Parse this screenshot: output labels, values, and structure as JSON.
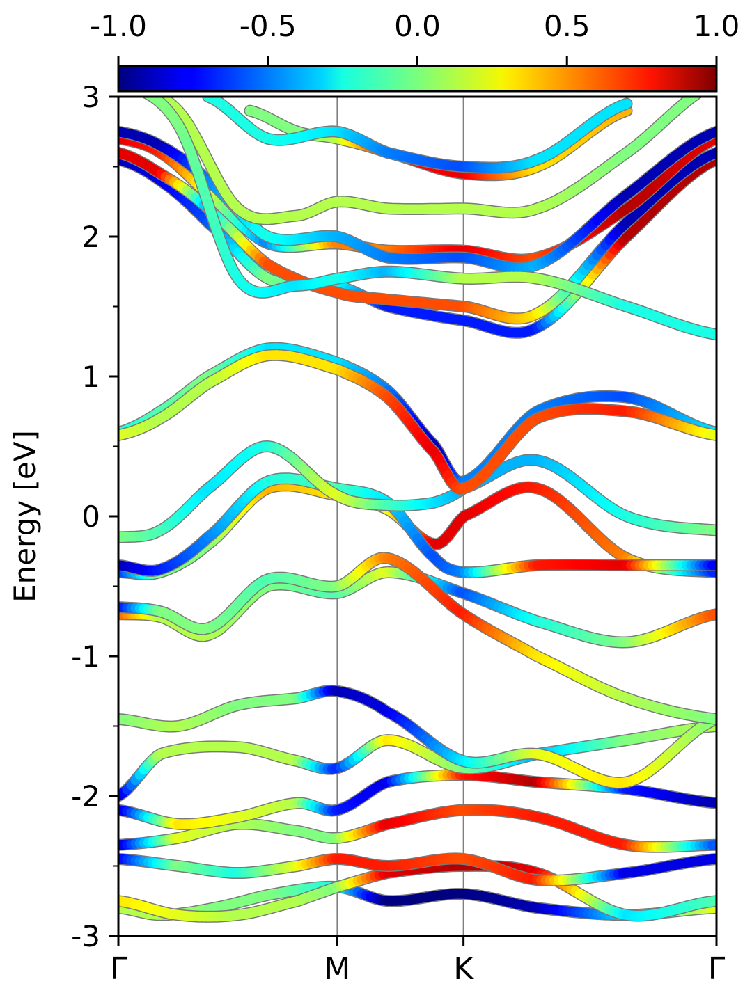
{
  "chart_data": {
    "type": "line",
    "title": "",
    "ylabel": "Energy [eV]",
    "xlabel": "",
    "ylim": [
      -3,
      3
    ],
    "yticks": [
      "-3",
      "-2",
      "-1",
      "0",
      "1",
      "2",
      "3"
    ],
    "ytick_values": [
      -3,
      -2,
      -1,
      0,
      1,
      2,
      3
    ],
    "kpath": [
      {
        "label": "Γ",
        "x": 0.0
      },
      {
        "label": "M",
        "x": 0.366
      },
      {
        "label": "K",
        "x": 0.577
      },
      {
        "label": "Γ",
        "x": 1.0
      }
    ],
    "colorbar": {
      "colormap": "jet",
      "range": [
        -1.0,
        1.0
      ],
      "ticks": [
        "-1.0",
        "-0.5",
        "0.0",
        "0.5",
        "1.0"
      ],
      "tick_values": [
        -1.0,
        -0.5,
        0.0,
        0.5,
        1.0
      ]
    },
    "grid": false,
    "series": [
      {
        "x": [
          0,
          0.07,
          0.16,
          0.26,
          0.366,
          0.45,
          0.577,
          0.7,
          0.85,
          1.0
        ],
        "y": [
          -2.8,
          -2.85,
          -2.8,
          -2.7,
          -2.65,
          -2.75,
          -2.7,
          -2.8,
          -2.85,
          -2.8
        ],
        "c": [
          0.1,
          0.1,
          0.0,
          0.0,
          -0.2,
          -1.0,
          -1.0,
          -0.9,
          -0.3,
          0.2
        ]
      },
      {
        "x": [
          0,
          0.1,
          0.2,
          0.3,
          0.366,
          0.45,
          0.577,
          0.7,
          0.85,
          1.0
        ],
        "y": [
          -2.75,
          -2.85,
          -2.85,
          -2.75,
          -2.65,
          -2.55,
          -2.5,
          -2.55,
          -2.85,
          -2.75
        ],
        "c": [
          0.3,
          0.2,
          0.1,
          0.1,
          0.0,
          0.8,
          0.9,
          0.8,
          -0.3,
          -0.1
        ]
      },
      {
        "x": [
          0,
          0.1,
          0.2,
          0.3,
          0.366,
          0.45,
          0.577,
          0.7,
          0.85,
          1.0
        ],
        "y": [
          -2.45,
          -2.5,
          -2.55,
          -2.5,
          -2.45,
          -2.5,
          -2.45,
          -2.6,
          -2.55,
          -2.45
        ],
        "c": [
          -0.8,
          0.0,
          -0.2,
          0.2,
          0.7,
          0.7,
          0.6,
          0.7,
          -0.8,
          -0.8
        ]
      },
      {
        "x": [
          0,
          0.1,
          0.2,
          0.3,
          0.366,
          0.45,
          0.577,
          0.7,
          0.85,
          1.0
        ],
        "y": [
          -2.35,
          -2.3,
          -2.2,
          -2.25,
          -2.3,
          -2.2,
          -2.1,
          -2.15,
          -2.35,
          -2.35
        ],
        "c": [
          -0.9,
          0.2,
          0.1,
          0.0,
          0.0,
          0.8,
          0.6,
          0.7,
          0.7,
          -0.6
        ]
      },
      {
        "x": [
          0,
          0.1,
          0.2,
          0.3,
          0.366,
          0.45,
          0.577,
          0.7,
          0.85,
          1.0
        ],
        "y": [
          -2.1,
          -2.2,
          -2.15,
          -2.05,
          -2.1,
          -1.9,
          -1.85,
          -1.9,
          -1.95,
          -2.05
        ],
        "c": [
          -0.9,
          0.3,
          0.2,
          0.1,
          -0.7,
          -0.8,
          0.7,
          0.9,
          -0.7,
          -0.9
        ]
      },
      {
        "x": [
          0,
          0.07,
          0.2,
          0.3,
          0.366,
          0.45,
          0.577,
          0.7,
          0.85,
          1.0
        ],
        "y": [
          -2.0,
          -1.7,
          -1.65,
          -1.75,
          -1.8,
          -1.6,
          -1.8,
          -1.7,
          -1.6,
          -1.5
        ],
        "c": [
          -0.9,
          0.1,
          0.1,
          0.1,
          -0.7,
          0.3,
          0.0,
          -0.4,
          0.0,
          0.1
        ]
      },
      {
        "x": [
          0,
          0.1,
          0.2,
          0.3,
          0.366,
          0.45,
          0.577,
          0.7,
          0.85,
          1.0
        ],
        "y": [
          -1.45,
          -1.5,
          -1.35,
          -1.3,
          -1.25,
          -1.4,
          -1.75,
          -1.7,
          -1.9,
          -1.45
        ],
        "c": [
          0.0,
          0.1,
          0.0,
          0.0,
          -0.9,
          -0.8,
          -0.3,
          0.2,
          0.3,
          0.0
        ]
      },
      {
        "x": [
          0,
          0.07,
          0.15,
          0.25,
          0.366,
          0.45,
          0.577,
          0.7,
          0.85,
          1.0
        ],
        "y": [
          -0.7,
          -0.72,
          -0.85,
          -0.5,
          -0.55,
          -0.4,
          -0.55,
          -0.75,
          -0.9,
          -0.7
        ],
        "c": [
          0.6,
          0.1,
          0.1,
          0.0,
          -0.1,
          0.2,
          -0.6,
          -0.2,
          0.0,
          0.6
        ]
      },
      {
        "x": [
          0,
          0.07,
          0.15,
          0.25,
          0.366,
          0.45,
          0.577,
          0.7,
          0.85,
          1.0
        ],
        "y": [
          -0.65,
          -0.68,
          -0.8,
          -0.45,
          -0.5,
          -0.3,
          -0.7,
          -1.0,
          -1.3,
          -1.45
        ],
        "c": [
          -0.8,
          0.0,
          0.0,
          -0.1,
          0.0,
          0.5,
          0.7,
          0.3,
          0.1,
          0.0
        ]
      },
      {
        "x": [
          0,
          0.07,
          0.15,
          0.25,
          0.366,
          0.45,
          0.53,
          0.577,
          0.7,
          0.85,
          1.0
        ],
        "y": [
          -0.4,
          -0.4,
          -0.2,
          0.2,
          0.15,
          0.05,
          -0.2,
          0.0,
          0.2,
          -0.3,
          -0.4
        ],
        "c": [
          -0.7,
          0.0,
          0.0,
          0.4,
          0.3,
          0.2,
          0.8,
          0.8,
          0.7,
          0.5,
          -0.7
        ]
      },
      {
        "x": [
          0,
          0.07,
          0.15,
          0.25,
          0.366,
          0.45,
          0.53,
          0.577,
          0.7,
          0.85,
          1.0
        ],
        "y": [
          -0.35,
          -0.38,
          -0.15,
          0.25,
          0.2,
          0.1,
          -0.3,
          -0.4,
          -0.35,
          -0.35,
          -0.35
        ],
        "c": [
          -0.9,
          -0.7,
          -0.5,
          -0.2,
          -0.1,
          -0.3,
          -0.6,
          -0.5,
          0.7,
          0.8,
          -0.8
        ]
      },
      {
        "x": [
          0,
          0.07,
          0.15,
          0.25,
          0.366,
          0.45,
          0.53,
          0.577,
          0.7,
          0.85,
          1.0
        ],
        "y": [
          -0.15,
          -0.1,
          0.2,
          0.5,
          0.15,
          0.08,
          0.1,
          0.2,
          0.4,
          0.0,
          -0.1
        ],
        "c": [
          0.0,
          -0.1,
          -0.3,
          -0.2,
          0.2,
          -0.1,
          -0.3,
          -0.4,
          -0.4,
          -0.2,
          0.0
        ]
      },
      {
        "x": [
          0,
          0.07,
          0.15,
          0.25,
          0.366,
          0.45,
          0.53,
          0.577,
          0.7,
          0.85,
          1.0
        ],
        "y": [
          0.6,
          0.75,
          1.0,
          1.2,
          1.1,
          0.9,
          0.5,
          0.25,
          0.75,
          0.85,
          0.6
        ],
        "c": [
          -0.2,
          -0.1,
          0.0,
          -0.3,
          -0.3,
          -0.5,
          -0.9,
          -0.5,
          -0.5,
          -0.6,
          -0.3
        ]
      },
      {
        "x": [
          0,
          0.07,
          0.15,
          0.25,
          0.366,
          0.45,
          0.53,
          0.577,
          0.7,
          0.85,
          1.0
        ],
        "y": [
          0.58,
          0.7,
          0.95,
          1.15,
          1.05,
          0.85,
          0.45,
          0.2,
          0.7,
          0.75,
          0.58
        ],
        "c": [
          0.2,
          0.1,
          0.1,
          0.3,
          0.3,
          0.6,
          0.8,
          0.6,
          0.6,
          0.7,
          0.2
        ]
      },
      {
        "x": [
          0,
          0.07,
          0.15,
          0.25,
          0.366,
          0.45,
          0.577,
          0.7,
          0.85,
          1.0
        ],
        "y": [
          2.55,
          2.4,
          2.1,
          1.7,
          1.65,
          1.5,
          1.4,
          1.35,
          2.0,
          2.55
        ],
        "c": [
          -0.9,
          -0.8,
          -0.6,
          0.0,
          -0.2,
          -0.7,
          -0.7,
          -0.7,
          0.9,
          0.9
        ]
      },
      {
        "x": [
          0,
          0.07,
          0.15,
          0.25,
          0.366,
          0.45,
          0.577,
          0.7,
          0.85,
          1.0
        ],
        "y": [
          2.6,
          2.45,
          2.2,
          1.8,
          1.6,
          1.55,
          1.5,
          1.45,
          2.1,
          2.6
        ],
        "c": [
          0.8,
          0.8,
          -0.4,
          0.6,
          0.6,
          0.6,
          0.6,
          0.3,
          -0.9,
          -0.9
        ]
      },
      {
        "x": [
          0,
          0.07,
          0.15,
          0.25,
          0.366,
          0.45,
          0.577,
          0.7,
          0.85,
          1.0
        ],
        "y": [
          2.7,
          2.6,
          2.3,
          1.95,
          1.95,
          1.9,
          1.9,
          1.85,
          2.2,
          2.7
        ],
        "c": [
          0.8,
          0.7,
          0.2,
          -0.5,
          0.5,
          0.5,
          0.8,
          0.6,
          0.9,
          0.8
        ]
      },
      {
        "x": [
          0,
          0.07,
          0.15,
          0.25,
          0.366,
          0.45,
          0.577,
          0.7,
          0.85,
          1.0
        ],
        "y": [
          2.75,
          2.65,
          2.4,
          2.0,
          2.0,
          1.85,
          1.85,
          1.8,
          2.3,
          2.75
        ],
        "c": [
          -0.9,
          -0.9,
          -0.5,
          -0.2,
          -0.4,
          -0.5,
          -0.6,
          -0.4,
          -0.9,
          -0.9
        ]
      },
      {
        "x": [
          0,
          0.1,
          0.2,
          0.3,
          0.366,
          0.45,
          0.577,
          0.7,
          0.85,
          1.0
        ],
        "y": [
          3.1,
          2.9,
          2.2,
          2.15,
          2.25,
          2.2,
          2.2,
          2.2,
          2.6,
          3.1
        ],
        "c": [
          0.0,
          0.1,
          0.1,
          0.1,
          0.1,
          0.1,
          0.1,
          0.1,
          0.0,
          0.0
        ]
      },
      {
        "x": [
          0,
          0.1,
          0.2,
          0.3,
          0.366,
          0.45,
          0.577,
          0.7,
          0.85,
          1.0
        ],
        "y": [
          3.1,
          2.8,
          1.7,
          1.65,
          1.7,
          1.75,
          1.7,
          1.7,
          1.5,
          1.3
        ],
        "c": [
          0.0,
          0.0,
          -0.2,
          -0.3,
          -0.2,
          -0.4,
          0.1,
          0.1,
          -0.2,
          -0.2
        ]
      },
      {
        "x": [
          0.22,
          0.3,
          0.366,
          0.45,
          0.577,
          0.7,
          0.85
        ],
        "y": [
          2.9,
          2.75,
          2.7,
          2.6,
          2.45,
          2.5,
          2.9
        ],
        "c": [
          0.0,
          0.0,
          0.1,
          0.7,
          0.8,
          0.3,
          0.4
        ]
      },
      {
        "x": [
          0.15,
          0.25,
          0.366,
          0.45,
          0.577,
          0.7,
          0.85
        ],
        "y": [
          3.0,
          2.7,
          2.75,
          2.6,
          2.5,
          2.55,
          2.95
        ],
        "c": [
          -0.2,
          -0.2,
          -0.3,
          -0.5,
          -0.6,
          -0.3,
          -0.3
        ]
      }
    ]
  }
}
